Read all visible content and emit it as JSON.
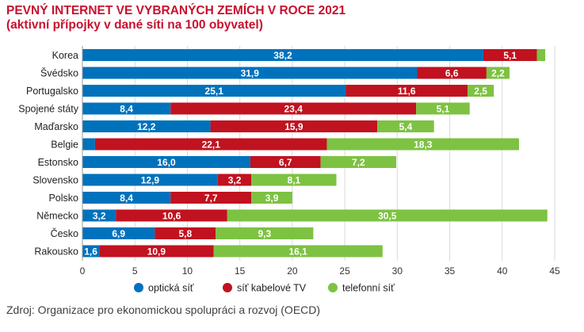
{
  "title_line1": "PEVNÝ INTERNET VE VYBRANÝCH ZEMÍCH V ROCE 2021",
  "title_line2": "(aktivní přípojky v dané síti na 100 obyvatel)",
  "source": "Zdroj: Organizace pro ekonomickou spolupráci a rozvoj (OECD)",
  "chart_data": {
    "type": "bar",
    "orientation": "horizontal",
    "stacked": true,
    "categories": [
      "Korea",
      "Švédsko",
      "Portugalsko",
      "Spojené státy",
      "Maďarsko",
      "Belgie",
      "Estonsko",
      "Slovensko",
      "Polsko",
      "Německo",
      "Česko",
      "Rakousko"
    ],
    "series": [
      {
        "name": "optická síť",
        "color": "#0072bc",
        "values": [
          38.2,
          31.9,
          25.1,
          8.4,
          12.2,
          1.2,
          16.0,
          12.9,
          8.4,
          3.2,
          6.9,
          1.6
        ],
        "labels": [
          "38,2",
          "31,9",
          "25,1",
          "8,4",
          "12,2",
          "",
          "16,0",
          "12,9",
          "8,4",
          "3,2",
          "6,9",
          "1,6"
        ]
      },
      {
        "name": "síť kabelové TV",
        "color": "#c1121f",
        "values": [
          5.1,
          6.6,
          11.6,
          23.4,
          15.9,
          22.1,
          6.7,
          3.2,
          7.7,
          10.6,
          5.8,
          10.9
        ],
        "labels": [
          "5,1",
          "6,6",
          "11,6",
          "23,4",
          "15,9",
          "22,1",
          "6,7",
          "3,2",
          "7,7",
          "10,6",
          "5,8",
          "10,9"
        ]
      },
      {
        "name": "telefonní síť",
        "color": "#7dc242",
        "values": [
          0.8,
          2.2,
          2.5,
          5.1,
          5.4,
          18.3,
          7.2,
          8.1,
          3.9,
          30.5,
          9.3,
          16.1
        ],
        "labels": [
          "",
          "2,2",
          "2,5",
          "5,1",
          "5,4",
          "18,3",
          "7,2",
          "8,1",
          "3,9",
          "30,5",
          "9,3",
          "16,1"
        ]
      }
    ],
    "x_ticks": [
      "0",
      "5",
      "10",
      "15",
      "20",
      "25",
      "30",
      "35",
      "40",
      "45"
    ],
    "xlim": [
      0,
      45
    ],
    "grid": true,
    "legend_position": "bottom"
  }
}
